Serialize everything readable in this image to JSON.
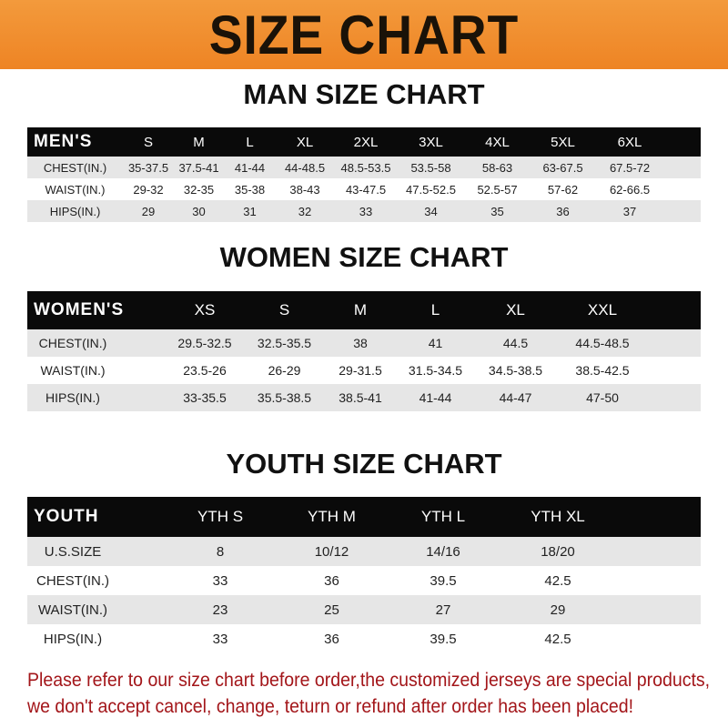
{
  "banner_title": "SIZE CHART",
  "men": {
    "title": "MAN SIZE CHART",
    "header": [
      "MEN'S",
      "S",
      "M",
      "L",
      "XL",
      "2XL",
      "3XL",
      "4XL",
      "5XL",
      "6XL"
    ],
    "rows": [
      [
        "CHEST(IN.)",
        "35-37.5",
        "37.5-41",
        "41-44",
        "44-48.5",
        "48.5-53.5",
        "53.5-58",
        "58-63",
        "63-67.5",
        "67.5-72"
      ],
      [
        "WAIST(IN.)",
        "29-32",
        "32-35",
        "35-38",
        "38-43",
        "43-47.5",
        "47.5-52.5",
        "52.5-57",
        "57-62",
        "62-66.5"
      ],
      [
        "HIPS(IN.)",
        "29",
        "30",
        "31",
        "32",
        "33",
        "34",
        "35",
        "36",
        "37"
      ]
    ]
  },
  "women": {
    "title": "WOMEN SIZE CHART",
    "header": [
      "WOMEN'S",
      "XS",
      "S",
      "M",
      "L",
      "XL",
      "XXL"
    ],
    "rows": [
      [
        "CHEST(IN.)",
        "29.5-32.5",
        "32.5-35.5",
        "38",
        "41",
        "44.5",
        "44.5-48.5"
      ],
      [
        "WAIST(IN.)",
        "23.5-26",
        "26-29",
        "29-31.5",
        "31.5-34.5",
        "34.5-38.5",
        "38.5-42.5"
      ],
      [
        "HIPS(IN.)",
        "33-35.5",
        "35.5-38.5",
        "38.5-41",
        "41-44",
        "44-47",
        "47-50"
      ]
    ]
  },
  "youth": {
    "title": "YOUTH SIZE CHART",
    "header": [
      "YOUTH",
      "YTH S",
      "YTH M",
      "YTH L",
      "YTH XL"
    ],
    "rows": [
      [
        "U.S.SIZE",
        "8",
        "10/12",
        "14/16",
        "18/20"
      ],
      [
        "CHEST(IN.)",
        "33",
        "36",
        "39.5",
        "42.5"
      ],
      [
        "WAIST(IN.)",
        "23",
        "25",
        "27",
        "29"
      ],
      [
        "HIPS(IN.)",
        "33",
        "36",
        "39.5",
        "42.5"
      ]
    ]
  },
  "note": {
    "line1": "Please refer to our size chart before order,the customized jerseys are special products,",
    "line2": "we don't accept cancel, change, teturn or refund after order has been placed!"
  },
  "colors": {
    "banner": "#ef8a2c",
    "header_row": "#0a0a0a",
    "stripe": "#e6e6e6",
    "note": "#a3161a"
  }
}
